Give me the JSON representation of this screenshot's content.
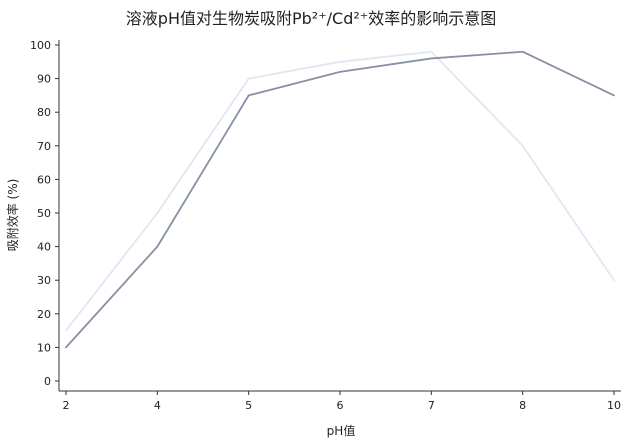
{
  "chart_data": {
    "type": "line",
    "title": "溶液pH值对生物炭吸附Pb²⁺/Cd²⁺效率的影响示意图",
    "xlabel": "pH值",
    "ylabel": "吸附效率 (%)",
    "x": [
      "2",
      "4",
      "5",
      "6",
      "7",
      "8",
      "10"
    ],
    "ylim": [
      0,
      100
    ],
    "yticks": [
      0,
      10,
      20,
      30,
      40,
      50,
      60,
      70,
      80,
      90,
      100
    ],
    "grid": false,
    "series": [
      {
        "color": "#8691a6",
        "values": [
          10,
          40,
          85,
          92,
          96,
          98,
          85
        ]
      },
      {
        "color": "#e4e4f2",
        "values": [
          15,
          50,
          90,
          95,
          98,
          70,
          30
        ]
      }
    ]
  }
}
